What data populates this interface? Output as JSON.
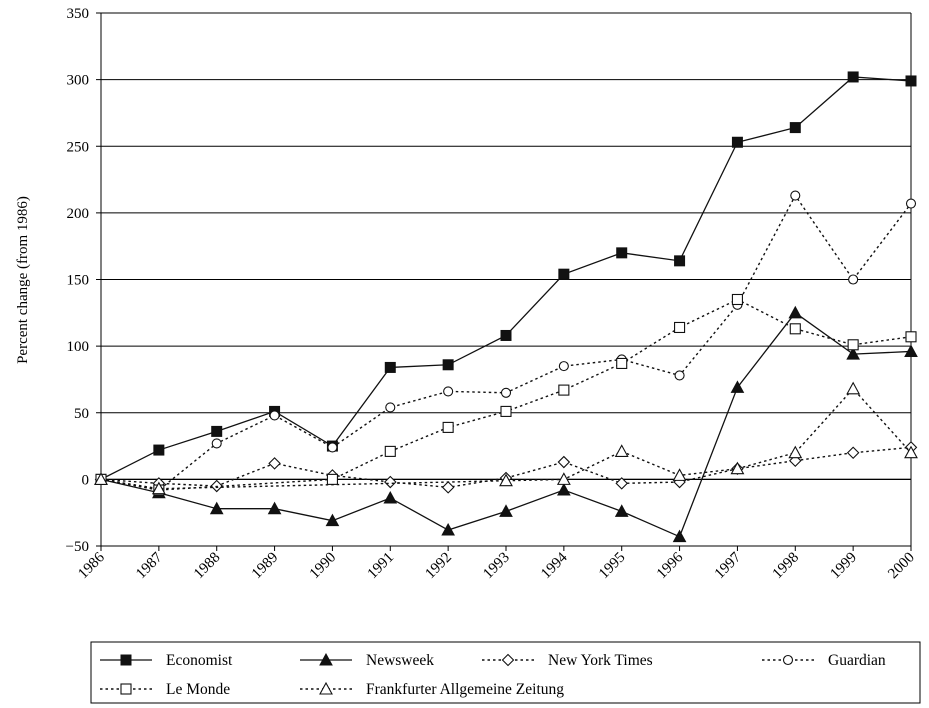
{
  "chart_data": {
    "type": "line",
    "ylabel": "Percent change (from 1986)",
    "xlabel": "",
    "title": "",
    "ylim": [
      -50,
      350
    ],
    "yticks": [
      -50,
      0,
      50,
      100,
      150,
      200,
      250,
      300,
      350
    ],
    "x": [
      "1986",
      "1987",
      "1988",
      "1989",
      "1990",
      "1991",
      "1992",
      "1993",
      "1994",
      "1995",
      "1996",
      "1997",
      "1998",
      "1999",
      "2000"
    ],
    "grid": "horizontal",
    "legend_position": "bottom",
    "series": [
      {
        "name": "Economist",
        "line": "solid",
        "marker": "square-filled",
        "values": [
          0,
          22,
          36,
          51,
          25,
          84,
          86,
          108,
          154,
          170,
          164,
          253,
          264,
          302,
          299
        ]
      },
      {
        "name": "Newsweek",
        "line": "solid",
        "marker": "triangle-filled",
        "values": [
          0,
          -10,
          -22,
          -22,
          -31,
          -14,
          -38,
          -24,
          -8,
          -24,
          -43,
          69,
          125,
          94,
          96
        ]
      },
      {
        "name": "New York Times",
        "line": "dotted",
        "marker": "diamond-open",
        "values": [
          0,
          -3,
          -5,
          12,
          3,
          -2,
          -6,
          1,
          13,
          -3,
          -2,
          8,
          14,
          20,
          24
        ]
      },
      {
        "name": "Guardian",
        "line": "dotted",
        "marker": "circle-open",
        "values": [
          0,
          -8,
          27,
          48,
          24,
          54,
          66,
          65,
          85,
          90,
          78,
          131,
          213,
          150,
          207
        ]
      },
      {
        "name": "Le Monde",
        "line": "dotted",
        "marker": "square-open",
        "values": [
          0,
          -8,
          null,
          null,
          0,
          21,
          39,
          51,
          67,
          87,
          114,
          135,
          113,
          101,
          107
        ]
      },
      {
        "name": "Frankfurter Allgemeine Zeitung",
        "line": "dotted",
        "marker": "triangle-open",
        "values": [
          0,
          -7,
          null,
          null,
          null,
          null,
          null,
          -1,
          0,
          21,
          3,
          8,
          20,
          68,
          20
        ]
      }
    ]
  }
}
